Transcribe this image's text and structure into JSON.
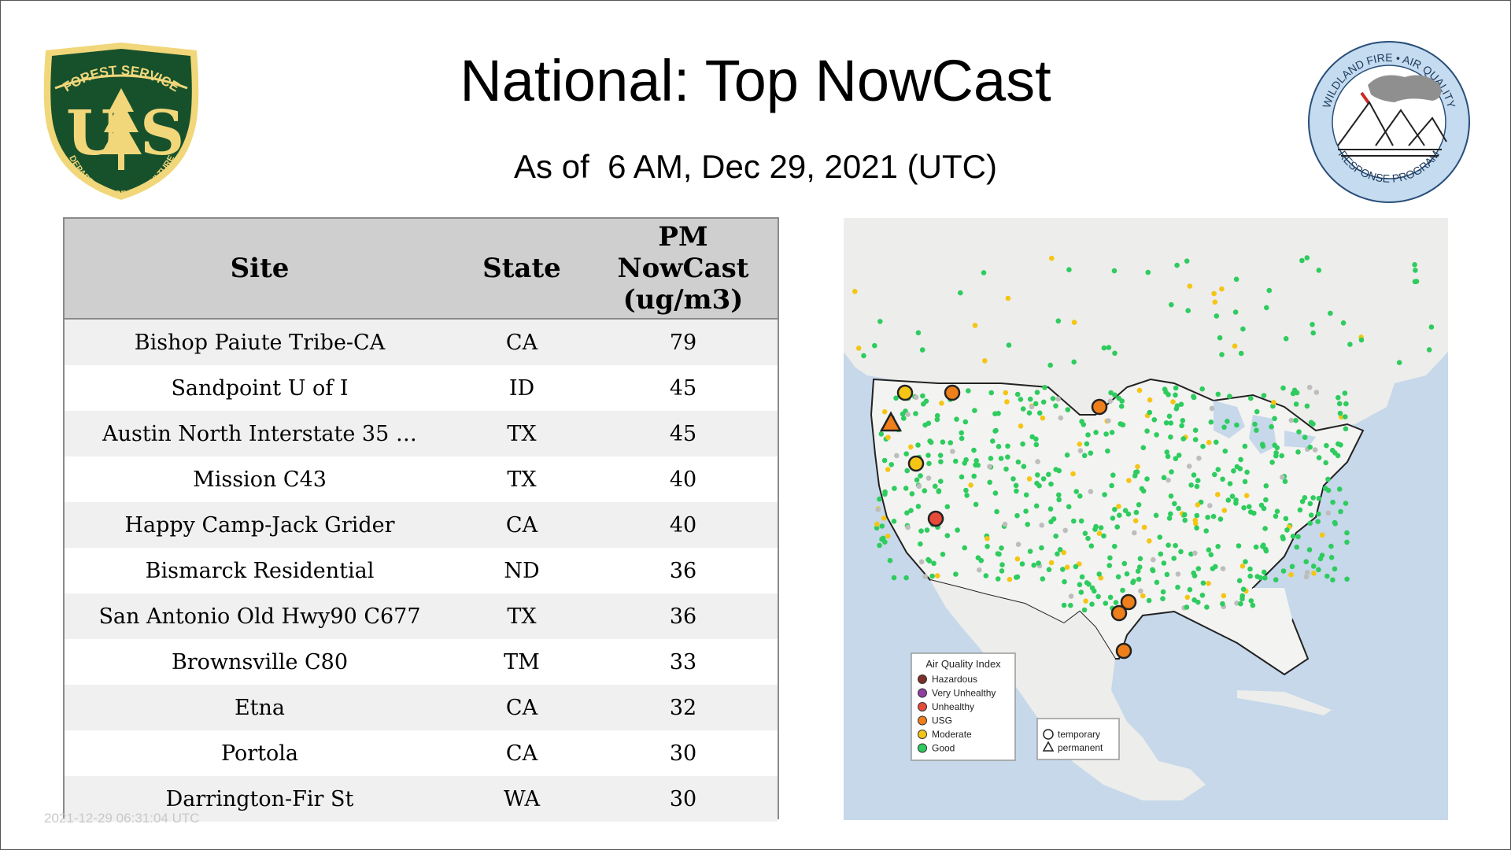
{
  "header": {
    "title": "National: Top NowCast",
    "subtitle": "As of  6 AM, Dec 29, 2021 (UTC)"
  },
  "logos": {
    "usfs": {
      "top_text": "FOREST SERVICE",
      "letters": "US",
      "bottom_text": "DEPARTMENT OF AGRICULTURE"
    },
    "wfaq": {
      "top_text": "WILDLAND FIRE • AIR QUALITY",
      "bottom_text": "RESPONSE PROGRAM"
    }
  },
  "table": {
    "headers": {
      "site": "Site",
      "state": "State",
      "pm_line1": "PM",
      "pm_line2": "NowCast",
      "pm_line3": "(ug/m3)"
    },
    "rows": [
      {
        "site": "Bishop Paiute Tribe-CA",
        "state": "CA",
        "pm": "79"
      },
      {
        "site": "Sandpoint U of I",
        "state": "ID",
        "pm": "45"
      },
      {
        "site": "Austin North Interstate 35 …",
        "state": "TX",
        "pm": "45"
      },
      {
        "site": "Mission C43",
        "state": "TX",
        "pm": "40"
      },
      {
        "site": "Happy Camp-Jack Grider",
        "state": "CA",
        "pm": "40"
      },
      {
        "site": "Bismarck Residential",
        "state": "ND",
        "pm": "36"
      },
      {
        "site": "San Antonio Old Hwy90 C677",
        "state": "TX",
        "pm": "36"
      },
      {
        "site": "Brownsville C80",
        "state": "TM",
        "pm": "33"
      },
      {
        "site": "Etna",
        "state": "CA",
        "pm": "32"
      },
      {
        "site": "Portola",
        "state": "CA",
        "pm": "30"
      },
      {
        "site": "Darrington-Fir St",
        "state": "WA",
        "pm": "30"
      }
    ]
  },
  "map": {
    "legend": {
      "title": "Air Quality Index",
      "items": [
        {
          "label": "Hazardous",
          "color": "#7e2f27"
        },
        {
          "label": "Very Unhealthy",
          "color": "#8e3fa0"
        },
        {
          "label": "Unhealthy",
          "color": "#e84a3a"
        },
        {
          "label": "USG",
          "color": "#ef7f1a"
        },
        {
          "label": "Moderate",
          "color": "#f4c514"
        },
        {
          "label": "Good",
          "color": "#2ecc5f"
        }
      ]
    },
    "type_legend": {
      "temporary": "temporary",
      "permanent": "permanent"
    }
  },
  "footer": {
    "timestamp": "2021-12-29 06:31:04 UTC"
  }
}
